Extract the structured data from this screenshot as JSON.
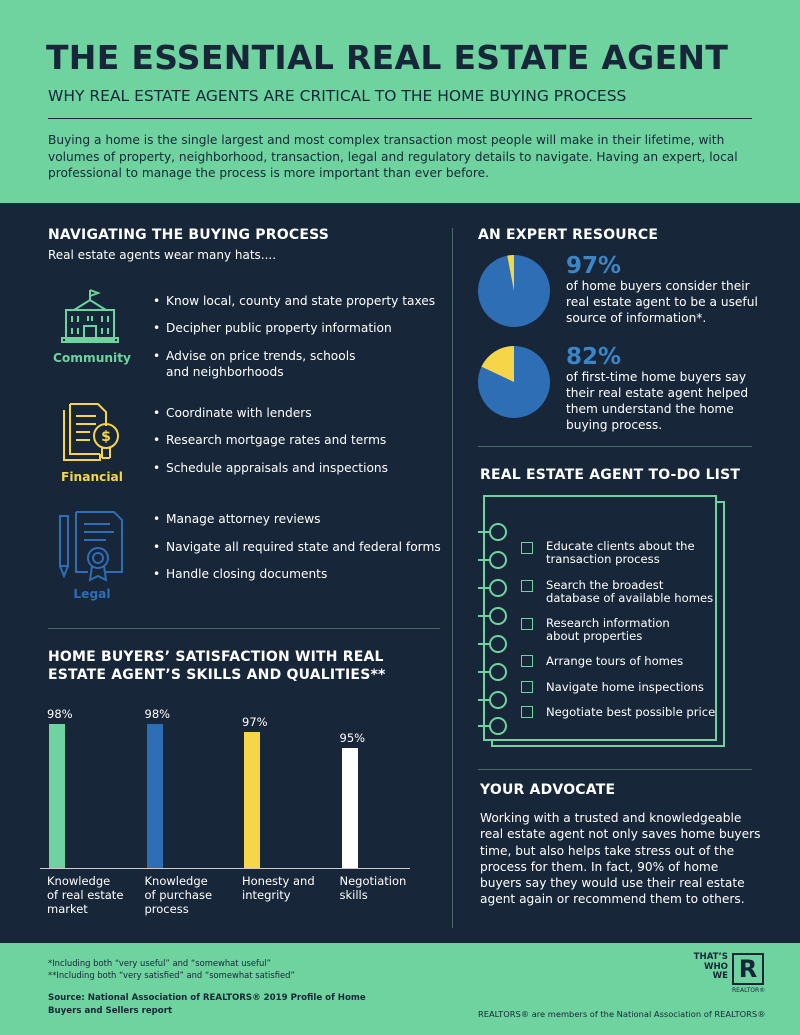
{
  "header": {
    "title": "THE ESSENTIAL REAL ESTATE AGENT",
    "subtitle": "WHY REAL ESTATE AGENTS ARE CRITICAL TO THE HOME BUYING PROCESS",
    "intro": "Buying a home is the single largest and most complex transaction most people will make in their lifetime, with volumes of property, neighborhood, transaction, legal and regulatory details to navigate. Having an expert, local professional to manage the process is more important than ever before."
  },
  "navigating": {
    "heading": "NAVIGATING THE BUYING PROCESS",
    "lead": "Real estate agents wear many hats....",
    "groups": [
      {
        "label": "Community",
        "icon": "building-icon",
        "color": "#6FD3A0",
        "items": [
          "Know local, county and state property taxes",
          "Decipher public property information",
          "Advise on price trends, schools",
          "and neighborhoods"
        ]
      },
      {
        "label": "Financial",
        "icon": "documents-dollar-icon",
        "color": "#F7D548",
        "items": [
          "Coordinate with lenders",
          "Research mortgage rates and terms",
          "Schedule appraisals and inspections"
        ]
      },
      {
        "label": "Legal",
        "icon": "certificate-pen-icon",
        "color": "#2E6EB5",
        "items": [
          "Manage attorney reviews",
          "Navigate all required state and federal forms",
          "Handle closing documents"
        ]
      }
    ]
  },
  "expert": {
    "heading": "AN EXPERT RESOURCE",
    "stats": [
      {
        "pct": "97%",
        "value": 97,
        "lines": [
          "of home buyers consider their",
          "real estate agent to be a useful",
          "source of information*."
        ]
      },
      {
        "pct": "82%",
        "value": 82,
        "lines": [
          "of first-time home buyers say",
          "their real estate agent helped",
          "them understand the home",
          "buying process."
        ]
      }
    ]
  },
  "todo": {
    "heading": "REAL ESTATE AGENT TO-DO LIST",
    "items": [
      [
        "Educate clients about the",
        "transaction process"
      ],
      [
        "Search the broadest",
        "database of available homes"
      ],
      [
        "Research information",
        "about properties"
      ],
      [
        "Arrange tours of homes"
      ],
      [
        "Navigate home inspections"
      ],
      [
        "Negotiate best possible price"
      ]
    ]
  },
  "satisfaction": {
    "heading_line1": "HOME BUYERS’ SATISFACTION WITH REAL",
    "heading_line2": "ESTATE AGENT’S SKILLS AND QUALITIES**"
  },
  "chart_data": {
    "type": "bar",
    "categories": [
      "Knowledge of real estate market",
      "Knowledge of purchase process",
      "Honesty and integrity",
      "Negotiation skills"
    ],
    "category_lines": [
      [
        "Knowledge",
        "of real estate",
        "market"
      ],
      [
        "Knowledge",
        "of purchase",
        "process"
      ],
      [
        "Honesty and",
        "integrity"
      ],
      [
        "Negotiation",
        "skills"
      ]
    ],
    "values": [
      98,
      98,
      97,
      95
    ],
    "value_labels": [
      "98%",
      "98%",
      "97%",
      "95%"
    ],
    "colors": [
      "#6FD3A0",
      "#2E6EB5",
      "#F7D548",
      "#FFFFFF"
    ],
    "title": "HOME BUYERS’ SATISFACTION WITH REAL ESTATE AGENT’S SKILLS AND QUALITIES**",
    "xlabel": "",
    "ylabel": "",
    "ylim": [
      80,
      100
    ],
    "grid": false
  },
  "advocate": {
    "heading": "YOUR ADVOCATE",
    "lines": [
      "Working with a trusted and knowledgeable",
      "real estate agent not only saves home buyers",
      "time, but also helps take stress out of the",
      "process for them. In fact, 90% of home",
      "buyers say they would use their real estate",
      "agent again or recommend them to others."
    ]
  },
  "footer": {
    "note1": "*Including both “very useful” and “somewhat useful”",
    "note2": "**Including both “very satisfied” and “somewhat satisfied”",
    "source1": "Source: National Association of REALTORS® 2019 Profile of Home",
    "source2": "Buyers and Sellers report",
    "members": "REALTORS® are members of the National Association of REALTORS®",
    "logo_l1": "THAT’S",
    "logo_l2": "WHO",
    "logo_l3": "WE",
    "logo_mark": "R",
    "logo_sub": "REALTOR®"
  },
  "colors": {
    "bg": "#172638",
    "green": "#6FD3A0",
    "blue": "#2E6EB5",
    "yellow": "#F7D548"
  }
}
